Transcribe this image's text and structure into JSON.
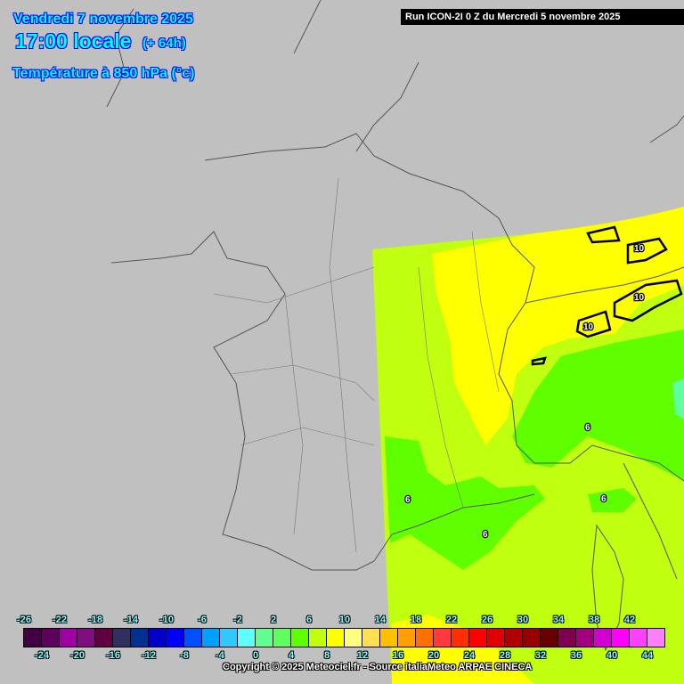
{
  "header": {
    "date": "Vendredi 7 novembre 2025",
    "time": "17:00 locale",
    "lead": "(+ 64h)",
    "parameter": "Température à 850 hPa (°c)",
    "run": "Run ICON-2I 0 Z du Mercredi 5 novembre 2025"
  },
  "map": {
    "background_color": "#c0c0c0",
    "contour_labels": [
      "10",
      "10",
      "10",
      "6",
      "6",
      "6",
      "6"
    ]
  },
  "legend": {
    "colors": [
      "#420042",
      "#5e005e",
      "#a000a0",
      "#7f0f7f",
      "#600040",
      "#303060",
      "#003090",
      "#0000c8",
      "#0000ff",
      "#0050ff",
      "#00a0ff",
      "#30c8ff",
      "#60ffff",
      "#60ff90",
      "#60ff60",
      "#60ff00",
      "#c0ff10",
      "#ffff00",
      "#ffff80",
      "#ffe050",
      "#ffc000",
      "#ffa000",
      "#ff7000",
      "#ff3a3a",
      "#ff3000",
      "#ff0000",
      "#e00000",
      "#b00000",
      "#980000",
      "#680000",
      "#800050",
      "#a00080",
      "#d000d0",
      "#ff00ff",
      "#ff40ff",
      "#ff80ff"
    ],
    "top_labels": [
      "-26",
      "-22",
      "-18",
      "-14",
      "-10",
      "-6",
      "-2",
      "2",
      "6",
      "10",
      "14",
      "18",
      "22",
      "26",
      "30",
      "34",
      "38",
      "42"
    ],
    "bottom_labels": [
      "-24",
      "-20",
      "-16",
      "-12",
      "-8",
      "-4",
      "0",
      "4",
      "8",
      "12",
      "16",
      "20",
      "24",
      "28",
      "32",
      "36",
      "40",
      "44"
    ]
  },
  "footer": {
    "copyright": "Copyright © 2025 Meteociel.fr - Source italiaMeteo ARPAE CINECA"
  }
}
